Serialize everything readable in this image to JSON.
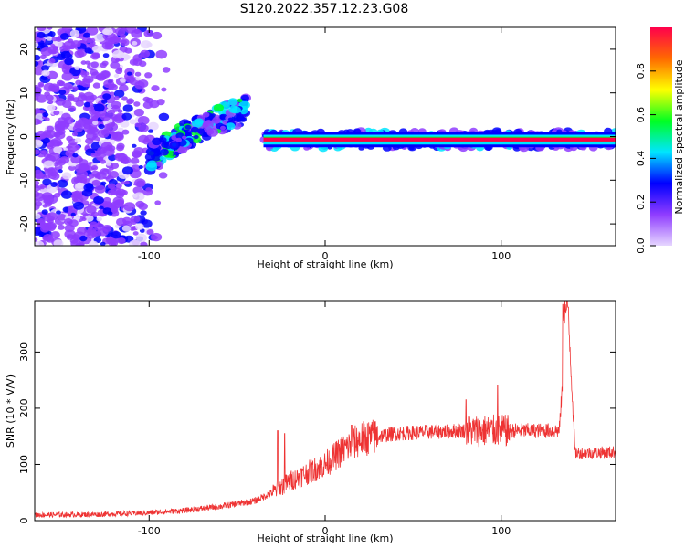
{
  "title": "S120.2022.357.12.23.G08",
  "chart_data": [
    {
      "type": "heatmap",
      "xlabel": "Height of straight line (km)",
      "ylabel": "Frequency (Hz)",
      "xlim": [
        -165,
        165
      ],
      "ylim": [
        -25,
        25
      ],
      "xticks": [
        -100,
        0,
        100
      ],
      "yticks": [
        -20,
        -10,
        0,
        10,
        20
      ],
      "colorbar": {
        "label": "Normalized spectral amplitude",
        "range": [
          0,
          1
        ],
        "ticks": [
          "0.0",
          "0.2",
          "0.4",
          "0.6",
          "0.8"
        ],
        "colormap": "gist_rainbow_reversed",
        "colors": [
          "#e6d6ff",
          "#8f3cff",
          "#0000ff",
          "#00e5ff",
          "#00ff22",
          "#ffff00",
          "#ff6a00",
          "#ff004c"
        ]
      },
      "features": [
        {
          "kind": "noise",
          "x_range": [
            -165,
            -95
          ],
          "y_range": [
            -25,
            25
          ],
          "level": 0.25
        },
        {
          "kind": "rising-trace",
          "x": [
            -100,
            -80,
            -60,
            -45
          ],
          "y": [
            -5,
            0,
            4,
            6
          ],
          "level": 0.4
        },
        {
          "kind": "steady-line",
          "x_range": [
            -35,
            165
          ],
          "y": -0.7,
          "level": 0.95
        }
      ]
    },
    {
      "type": "line",
      "xlabel": "Height of straight line (km)",
      "ylabel": "SNR (10 * V/V)",
      "xlim": [
        -165,
        165
      ],
      "ylim": [
        0,
        390
      ],
      "xticks": [
        -100,
        0,
        100
      ],
      "yticks": [
        0,
        100,
        200,
        300
      ],
      "color": "#ee3333",
      "envelope": {
        "x": [
          -165,
          -130,
          -100,
          -80,
          -60,
          -40,
          -30,
          -20,
          -10,
          0,
          10,
          20,
          40,
          60,
          80,
          100,
          120,
          133,
          138,
          142,
          150,
          165
        ],
        "y": [
          10,
          11,
          14,
          18,
          25,
          35,
          50,
          70,
          85,
          100,
          125,
          145,
          155,
          158,
          160,
          160,
          160,
          160,
          380,
          120,
          120,
          122
        ]
      },
      "spikes": [
        {
          "x": -27,
          "y": 160
        },
        {
          "x": -23,
          "y": 155
        },
        {
          "x": 15,
          "y": 170
        },
        {
          "x": 80,
          "y": 215
        },
        {
          "x": 98,
          "y": 240
        },
        {
          "x": 135,
          "y": 385
        },
        {
          "x": 138,
          "y": 380
        }
      ]
    }
  ]
}
